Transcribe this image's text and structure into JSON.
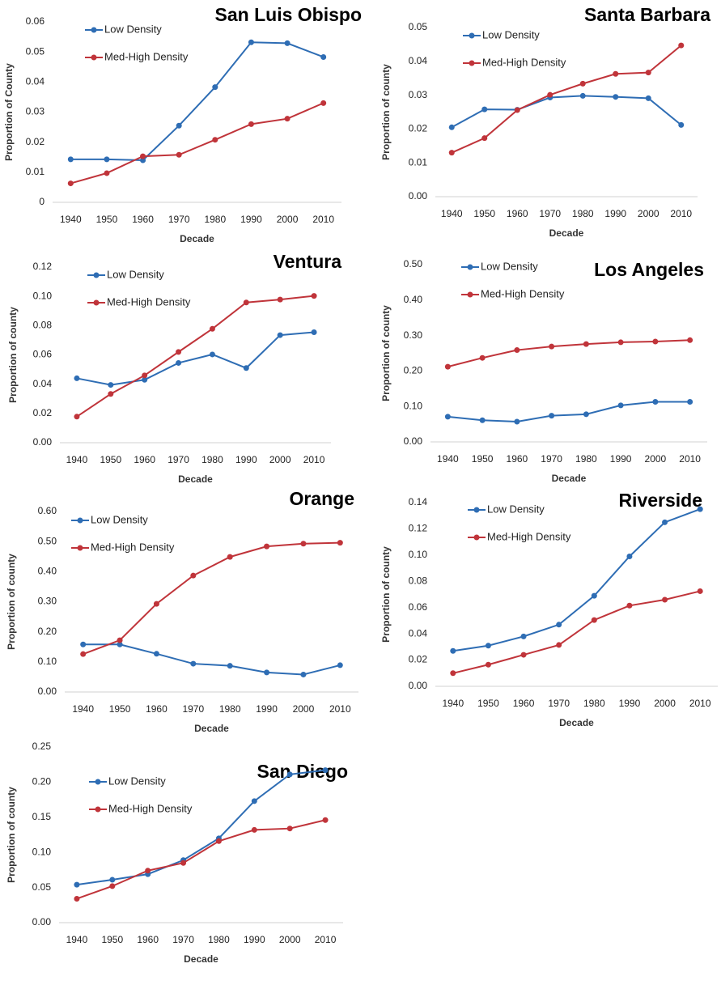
{
  "chart_data": [
    {
      "type": "line",
      "title": "San Luis Obispo",
      "y_label": "Proportion of County",
      "x_label": "Decade",
      "categories": [
        "1940",
        "1950",
        "1960",
        "1970",
        "1980",
        "1990",
        "2000",
        "2010"
      ],
      "series": [
        {
          "name": "Low Density",
          "color": "#2e6db4",
          "values": [
            0.0143,
            0.0143,
            0.014,
            0.0255,
            0.0383,
            0.0532,
            0.0529,
            0.0483
          ]
        },
        {
          "name": "Med-High Density",
          "color": "#c0343a",
          "values": [
            0.0063,
            0.0097,
            0.0153,
            0.0158,
            0.0208,
            0.026,
            0.0278,
            0.033
          ]
        }
      ],
      "ylim": [
        0,
        0.06
      ],
      "yticks": [
        0,
        0.01,
        0.02,
        0.03,
        0.04,
        0.05,
        0.06
      ]
    },
    {
      "type": "line",
      "title": "Santa Barbara",
      "y_label": "Proportion of county",
      "x_label": "Decade",
      "categories": [
        "1940",
        "1950",
        "1960",
        "1970",
        "1980",
        "1990",
        "2000",
        "2010"
      ],
      "series": [
        {
          "name": "Low Density",
          "color": "#2e6db4",
          "values": [
            0.0205,
            0.0258,
            0.0257,
            0.0293,
            0.0298,
            0.0295,
            0.0291,
            0.0212
          ]
        },
        {
          "name": "Med-High Density",
          "color": "#c0343a",
          "values": [
            0.013,
            0.0173,
            0.0256,
            0.0301,
            0.0334,
            0.0363,
            0.0367,
            0.0447
          ]
        }
      ],
      "ylim": [
        0,
        0.05
      ],
      "yticks": [
        {
          "value": 0,
          "label": "0.00"
        },
        0.01,
        0.02,
        0.03,
        0.04,
        0.05
      ]
    },
    {
      "type": "line",
      "title": "Ventura",
      "y_label": "Proportion of county",
      "x_label": "Decade",
      "categories": [
        "1940",
        "1950",
        "1960",
        "1970",
        "1980",
        "1990",
        "2000",
        "2010"
      ],
      "series": [
        {
          "name": "Low Density",
          "color": "#2e6db4",
          "values": [
            0.044,
            0.0395,
            0.043,
            0.0545,
            0.0603,
            0.051,
            0.0735,
            0.0755
          ]
        },
        {
          "name": "Med-High Density",
          "color": "#c0343a",
          "values": [
            0.0178,
            0.0333,
            0.046,
            0.062,
            0.0778,
            0.0958,
            0.0978,
            0.1003
          ]
        }
      ],
      "ylim": [
        0,
        0.12
      ],
      "yticks": [
        {
          "value": 0,
          "label": "0.00"
        },
        0.02,
        0.04,
        0.06,
        0.08,
        {
          "value": 0.1,
          "label": "0.10"
        },
        0.12
      ]
    },
    {
      "type": "line",
      "title": "Los Angeles",
      "y_label": "Proportion of county",
      "x_label": "Decade",
      "categories": [
        "1940",
        "1950",
        "1960",
        "1970",
        "1980",
        "1990",
        "2000",
        "2010"
      ],
      "series": [
        {
          "name": "Low Density",
          "color": "#2e6db4",
          "values": [
            0.071,
            0.061,
            0.057,
            0.074,
            0.078,
            0.103,
            0.113,
            0.113
          ]
        },
        {
          "name": "Med-High Density",
          "color": "#c0343a",
          "values": [
            0.212,
            0.237,
            0.259,
            0.269,
            0.276,
            0.281,
            0.283,
            0.287
          ]
        }
      ],
      "ylim": [
        0,
        0.5
      ],
      "yticks": [
        {
          "value": 0,
          "label": "0.00"
        },
        {
          "value": 0.1,
          "label": "0.10"
        },
        {
          "value": 0.2,
          "label": "0.20"
        },
        {
          "value": 0.3,
          "label": "0.30"
        },
        {
          "value": 0.4,
          "label": "0.40"
        },
        {
          "value": 0.5,
          "label": "0.50"
        }
      ]
    },
    {
      "type": "line",
      "title": "Orange",
      "y_label": "Proportion of county",
      "x_label": "Decade",
      "categories": [
        "1940",
        "1950",
        "1960",
        "1970",
        "1980",
        "1990",
        "2000",
        "2010"
      ],
      "series": [
        {
          "name": "Low Density",
          "color": "#2e6db4",
          "values": [
            0.158,
            0.158,
            0.127,
            0.094,
            0.087,
            0.065,
            0.058,
            0.089
          ]
        },
        {
          "name": "Med-High Density",
          "color": "#c0343a",
          "values": [
            0.126,
            0.172,
            0.293,
            0.387,
            0.449,
            0.484,
            0.493,
            0.496
          ]
        }
      ],
      "ylim": [
        0,
        0.6
      ],
      "yticks": [
        {
          "value": 0,
          "label": "0.00"
        },
        {
          "value": 0.1,
          "label": "0.10"
        },
        {
          "value": 0.2,
          "label": "0.20"
        },
        {
          "value": 0.3,
          "label": "0.30"
        },
        {
          "value": 0.4,
          "label": "0.40"
        },
        {
          "value": 0.5,
          "label": "0.50"
        },
        {
          "value": 0.6,
          "label": "0.60"
        }
      ]
    },
    {
      "type": "line",
      "title": "Riverside",
      "y_label": "Proportion of county",
      "x_label": "Decade",
      "categories": [
        "1940",
        "1950",
        "1960",
        "1970",
        "1980",
        "1990",
        "2000",
        "2010"
      ],
      "series": [
        {
          "name": "Low Density",
          "color": "#2e6db4",
          "values": [
            0.027,
            0.031,
            0.038,
            0.047,
            0.069,
            0.099,
            0.125,
            0.135
          ]
        },
        {
          "name": "Med-High Density",
          "color": "#c0343a",
          "values": [
            0.01,
            0.0165,
            0.024,
            0.0315,
            0.0505,
            0.0615,
            0.066,
            0.0725
          ]
        }
      ],
      "ylim": [
        0,
        0.14
      ],
      "yticks": [
        {
          "value": 0,
          "label": "0.00"
        },
        0.02,
        0.04,
        0.06,
        0.08,
        {
          "value": 0.1,
          "label": "0.10"
        },
        0.12,
        0.14
      ]
    },
    {
      "type": "line",
      "title": "San Diego",
      "y_label": "Proportion of county",
      "x_label": "Decade",
      "categories": [
        "1940",
        "1950",
        "1960",
        "1970",
        "1980",
        "1990",
        "2000",
        "2010"
      ],
      "series": [
        {
          "name": "Low Density",
          "color": "#2e6db4",
          "values": [
            0.054,
            0.061,
            0.069,
            0.089,
            0.12,
            0.173,
            0.211,
            0.217
          ]
        },
        {
          "name": "Med-High Density",
          "color": "#c0343a",
          "values": [
            0.034,
            0.052,
            0.074,
            0.085,
            0.116,
            0.132,
            0.134,
            0.146
          ]
        }
      ],
      "ylim": [
        0,
        0.25
      ],
      "yticks": [
        {
          "value": 0,
          "label": "0.00"
        },
        0.05,
        {
          "value": 0.1,
          "label": "0.10"
        },
        0.15,
        {
          "value": 0.2,
          "label": "0.20"
        },
        0.25
      ]
    }
  ]
}
